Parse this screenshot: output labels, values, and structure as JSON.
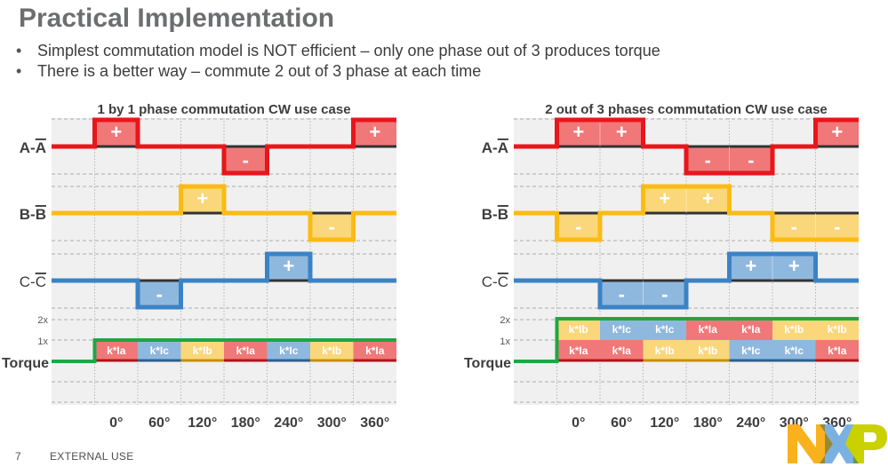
{
  "slide": {
    "title": "Practical Implementation",
    "bullets": [
      "Simplest commutation model is NOT efficient – only one phase out of 3 produces torque",
      "There is a better way – commute 2 out of 3 phase at each time"
    ],
    "bullet_glyph": "•",
    "page_number": "7",
    "classification": "EXTERNAL USE",
    "logo": "nxp-logo"
  },
  "colors": {
    "phase_a": "#e8161b",
    "phase_a_fill": "#f07879",
    "phase_b": "#fbbb14",
    "phase_b_fill": "#fad77a",
    "phase_c": "#3a83c5",
    "phase_c_fill": "#8fb8de",
    "torque": "#1fa642",
    "grid_bg": "#f0f0f0",
    "label": "#3d3d3d"
  },
  "chart_data": [
    {
      "type": "diagram-step",
      "title": "1 by 1 phase commutation CW use case",
      "rows": [
        "A-A̅",
        "B-B̅",
        "C-C̅",
        "Torque"
      ],
      "row_labels": {
        "a": "A-",
        "b": "B-",
        "c": "C-",
        "a_bar": "A",
        "b_bar": "B",
        "c_bar": "C",
        "torque": "Torque"
      },
      "x_ticks": [
        "0°",
        "60°",
        "120°",
        "180°",
        "240°",
        "300°",
        "360°"
      ],
      "torque_levels": [
        "2x",
        "1x"
      ],
      "phases": {
        "a": [
          0,
          1,
          0,
          0,
          -1,
          0,
          0,
          1
        ],
        "b": [
          0,
          0,
          0,
          1,
          0,
          0,
          -1,
          0
        ],
        "c": [
          0,
          0,
          -1,
          0,
          0,
          1,
          0,
          0
        ]
      },
      "torque": [
        0,
        1,
        1,
        1,
        1,
        1,
        1,
        1
      ],
      "torque_segments": [
        [],
        [
          {
            "label": "k*Ia",
            "phase": "a"
          }
        ],
        [
          {
            "label": "k*Ic",
            "phase": "c"
          }
        ],
        [
          {
            "label": "k*Ib",
            "phase": "b"
          }
        ],
        [
          {
            "label": "k*Ia",
            "phase": "a"
          }
        ],
        [
          {
            "label": "k*Ic",
            "phase": "c"
          }
        ],
        [
          {
            "label": "k*Ib",
            "phase": "b"
          }
        ],
        [
          {
            "label": "k*Ia",
            "phase": "a"
          }
        ]
      ]
    },
    {
      "type": "diagram-step",
      "title": "2 out of 3 phases commutation CW use case",
      "rows": [
        "A-A̅",
        "B-B̅",
        "C-C̅",
        "Torque"
      ],
      "row_labels": {
        "a": "A-",
        "b": "B-",
        "c": "C-",
        "a_bar": "A",
        "b_bar": "B",
        "c_bar": "C",
        "torque": "Torque"
      },
      "x_ticks": [
        "0°",
        "60°",
        "120°",
        "180°",
        "240°",
        "300°",
        "360°"
      ],
      "torque_levels": [
        "2x",
        "1x"
      ],
      "phases": {
        "a": [
          0,
          1,
          1,
          0,
          -1,
          -1,
          0,
          1
        ],
        "b": [
          0,
          -1,
          0,
          1,
          1,
          0,
          -1,
          -1
        ],
        "c": [
          0,
          0,
          -1,
          -1,
          0,
          1,
          1,
          0
        ]
      },
      "torque": [
        0,
        2,
        2,
        2,
        2,
        2,
        2,
        2
      ],
      "torque_segments": [
        [],
        [
          {
            "label": "k*Ia",
            "phase": "a"
          },
          {
            "label": "k*Ib",
            "phase": "b"
          }
        ],
        [
          {
            "label": "k*Ia",
            "phase": "a"
          },
          {
            "label": "k*Ic",
            "phase": "c"
          }
        ],
        [
          {
            "label": "k*Ib",
            "phase": "b"
          },
          {
            "label": "k*Ic",
            "phase": "c"
          }
        ],
        [
          {
            "label": "k*Ib",
            "phase": "b"
          },
          {
            "label": "k*Ia",
            "phase": "a"
          }
        ],
        [
          {
            "label": "k*Ic",
            "phase": "c"
          },
          {
            "label": "k*Ia",
            "phase": "a"
          }
        ],
        [
          {
            "label": "k*Ic",
            "phase": "c"
          },
          {
            "label": "k*Ib",
            "phase": "b"
          }
        ],
        [
          {
            "label": "k*Ia",
            "phase": "a"
          },
          {
            "label": "k*Ib",
            "phase": "b"
          }
        ]
      ]
    }
  ]
}
